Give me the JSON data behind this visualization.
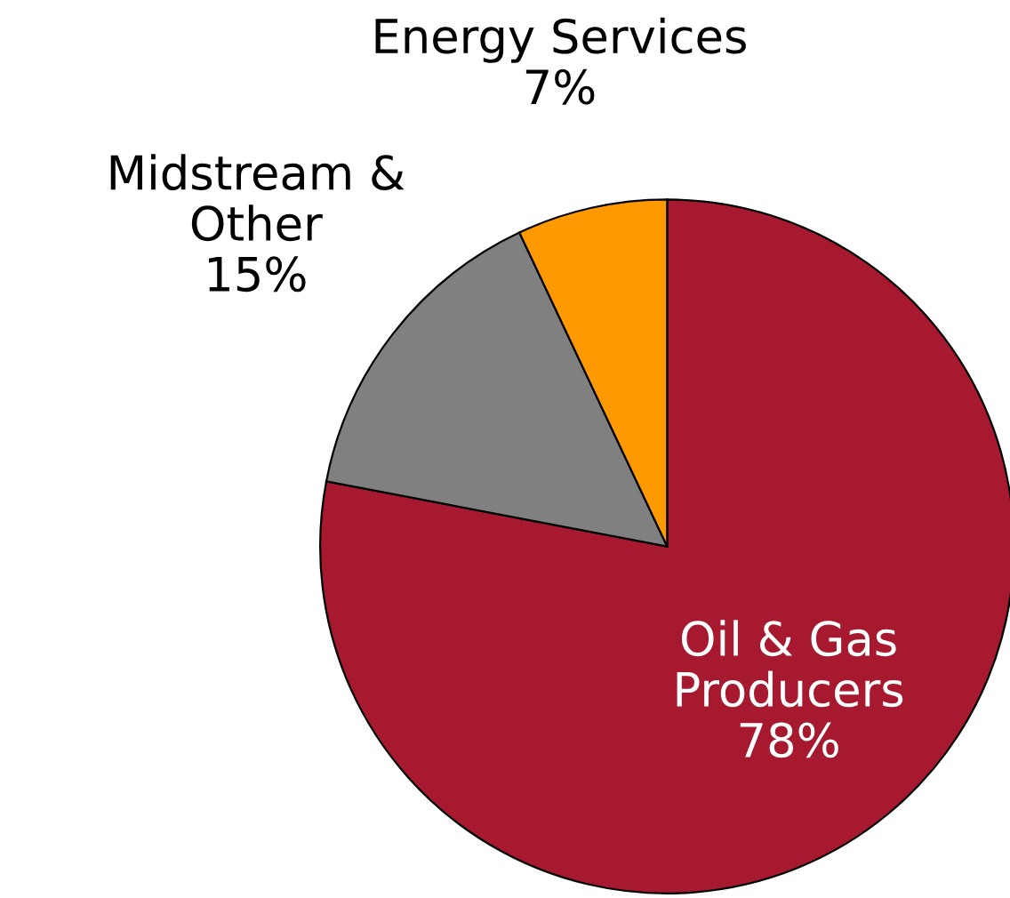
{
  "chart_data": {
    "type": "pie",
    "categories": [
      "Oil & Gas Producers",
      "Midstream & Other",
      "Energy Services"
    ],
    "values": [
      78,
      15,
      7
    ],
    "value_labels": [
      "78%",
      "15%",
      "7%"
    ],
    "colors": [
      "#a6192e",
      "#808080",
      "#ff9900"
    ]
  }
}
